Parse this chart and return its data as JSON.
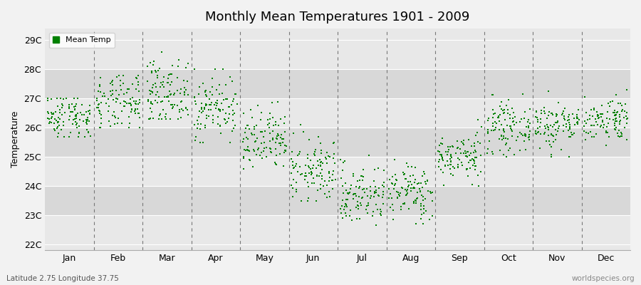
{
  "title": "Monthly Mean Temperatures 1901 - 2009",
  "ylabel": "Temperature",
  "xlabel_labels": [
    "Jan",
    "Feb",
    "Mar",
    "Apr",
    "May",
    "Jun",
    "Jul",
    "Aug",
    "Sep",
    "Oct",
    "Nov",
    "Dec"
  ],
  "ytick_labels": [
    "22C",
    "23C",
    "24C",
    "25C",
    "26C",
    "27C",
    "28C",
    "29C"
  ],
  "ytick_values": [
    22,
    23,
    24,
    25,
    26,
    27,
    28,
    29
  ],
  "ylim": [
    21.8,
    29.4
  ],
  "xlim": [
    0,
    12
  ],
  "dot_color": "#008000",
  "dot_size": 2.5,
  "bg_color": "#f2f2f2",
  "band_colors": [
    "#e8e8e8",
    "#d8d8d8"
  ],
  "grid_color": "#ffffff",
  "dashed_line_color": "#777777",
  "subtitle": "Latitude 2.75 Longitude 37.75",
  "watermark": "worldspecies.org",
  "legend_label": "Mean Temp",
  "seed": 42,
  "n_years": 109,
  "monthly_means": [
    26.4,
    26.8,
    27.2,
    26.7,
    25.5,
    24.5,
    23.7,
    23.8,
    25.0,
    26.0,
    26.1,
    26.3
  ],
  "monthly_stds": [
    0.4,
    0.5,
    0.55,
    0.55,
    0.55,
    0.55,
    0.52,
    0.48,
    0.4,
    0.42,
    0.42,
    0.38
  ],
  "monthly_mins": [
    25.7,
    26.0,
    26.3,
    25.5,
    23.9,
    23.5,
    22.5,
    22.7,
    24.0,
    25.0,
    25.0,
    25.4
  ],
  "monthly_maxs": [
    27.0,
    27.8,
    28.6,
    28.0,
    27.0,
    26.1,
    25.5,
    25.5,
    26.3,
    27.2,
    27.9,
    27.8
  ]
}
